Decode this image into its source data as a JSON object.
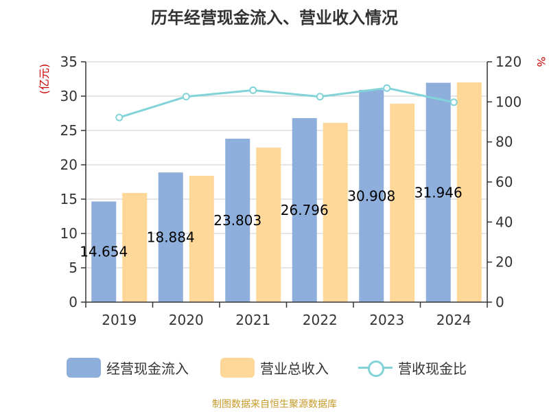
{
  "title": "历年经营现金流入、营业收入情况",
  "source": "制图数据来自恒生聚源数据库",
  "colors": {
    "cash_inflow": "#8eaedb",
    "revenue": "#fed898",
    "ratio": "#82d3d8",
    "axis_unit": "#cc0000",
    "source": "#c59a28"
  },
  "chart_data": {
    "type": "bar",
    "categories": [
      "2019",
      "2020",
      "2021",
      "2022",
      "2023",
      "2024"
    ],
    "left_axis": {
      "unit": "(亿元)",
      "ylim": [
        0,
        35
      ],
      "ticks": [
        0,
        5,
        10,
        15,
        20,
        25,
        30,
        35
      ]
    },
    "right_axis": {
      "unit": "%",
      "ylim": [
        0,
        120
      ],
      "ticks": [
        0,
        20,
        40,
        60,
        80,
        100,
        120
      ]
    },
    "grid": true,
    "legend_position": "bottom",
    "series": [
      {
        "name": "经营现金流入",
        "type": "bar",
        "axis": "left",
        "values": [
          14.654,
          18.884,
          23.803,
          26.796,
          30.908,
          31.946
        ],
        "labels": [
          "14.654",
          "18.884",
          "23.803",
          "26.796",
          "30.908",
          "31.946"
        ]
      },
      {
        "name": "营业总收入",
        "type": "bar",
        "axis": "left",
        "values": [
          15.9,
          18.4,
          22.5,
          26.1,
          28.9,
          32.0
        ]
      },
      {
        "name": "营收现金比",
        "type": "line",
        "axis": "right",
        "values": [
          92.2,
          102.6,
          105.8,
          102.6,
          106.9,
          99.8
        ]
      }
    ]
  }
}
